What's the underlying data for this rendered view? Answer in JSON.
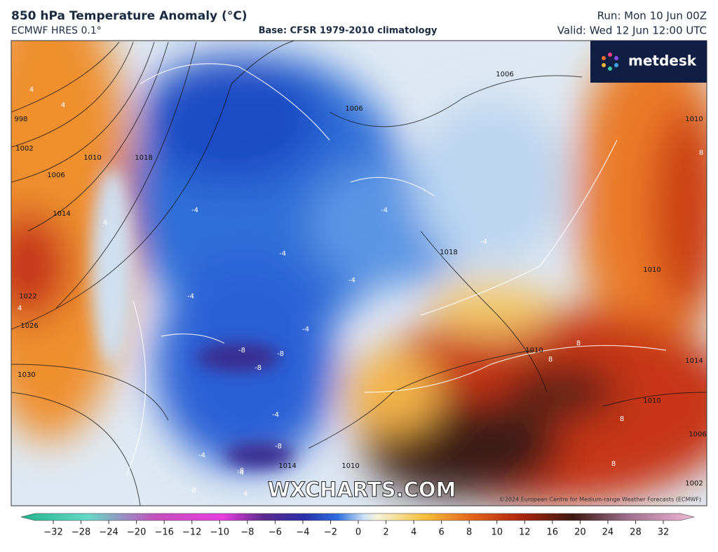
{
  "header": {
    "title": "850 hPa Temperature Anomaly (°C)",
    "model": "ECMWF HRES 0.1°",
    "base": "Base: CFSR 1979-2010 climatology",
    "run": "Run: Mon 10 Jun 00Z",
    "valid": "Valid: Wed 12 Jun 12:00 UTC"
  },
  "logo": "metdesk",
  "watermark": "WXCHARTS.COM",
  "copyright": "©2024 European Centre for Medium-range Weather Forecasts (ECMWF)",
  "isobar_labels": [
    "998",
    "1002",
    "1006",
    "1010",
    "1014",
    "1018",
    "1022",
    "1026",
    "1030",
    "1006",
    "1006",
    "1010",
    "1018",
    "1010",
    "1010",
    "1014",
    "1010",
    "1014",
    "1010",
    "1002",
    "1006"
  ],
  "anomaly_labels": [
    "4",
    "4",
    "4",
    "4",
    "4",
    "-4",
    "-4",
    "-4",
    "-4",
    "-4",
    "-4",
    "-4",
    "-4",
    "-4",
    "-4",
    "-8",
    "-8",
    "-8",
    "-8",
    "-8",
    "-8",
    "8",
    "8",
    "8",
    "8",
    "8"
  ],
  "colorbar": {
    "ticks": [
      "−32",
      "−28",
      "−24",
      "−20",
      "−16",
      "−12",
      "−10",
      "−8",
      "−6",
      "−4",
      "−2",
      "0",
      "2",
      "4",
      "6",
      "8",
      "10",
      "12",
      "16",
      "20",
      "24",
      "28",
      "32"
    ]
  }
}
